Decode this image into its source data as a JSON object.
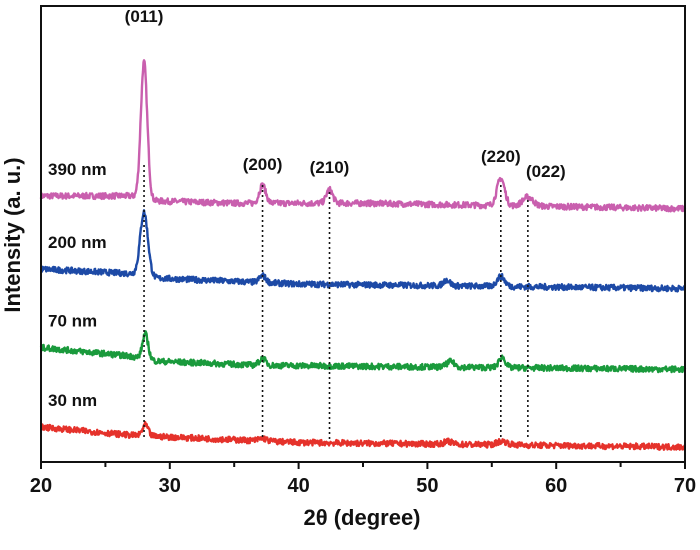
{
  "chart_data": {
    "type": "line",
    "xlabel": "2θ  (degree)",
    "ylabel": "Intensity  (a. u.)",
    "xlim": [
      20,
      70
    ],
    "ylim": [
      0,
      100
    ],
    "xticks": [
      "20",
      "30",
      "40",
      "50",
      "60",
      "70"
    ],
    "minor_xticks": [
      25,
      35,
      45,
      55,
      65
    ],
    "yticks_shown": false,
    "grid": false,
    "legend": "inline labels at left of each trace",
    "reference_lines": [
      {
        "x": 28.0,
        "label": "(011)"
      },
      {
        "x": 37.2,
        "label": "(200)"
      },
      {
        "x": 42.4,
        "label": "(210)"
      },
      {
        "x": 55.7,
        "label": "(220)"
      },
      {
        "x": 57.8,
        "label": "(022)"
      }
    ],
    "series": [
      {
        "name": "390 nm",
        "color": "#c95fae",
        "baseline": [
          [
            20,
            58.6
          ],
          [
            27,
            58.6
          ],
          [
            29,
            57.5
          ],
          [
            35,
            57
          ],
          [
            45,
            57
          ],
          [
            70,
            55.8
          ]
        ],
        "peaks": [
          [
            28.0,
            30,
            0.25
          ],
          [
            37.2,
            4,
            0.25
          ],
          [
            42.4,
            3,
            0.25
          ],
          [
            55.7,
            6,
            0.3
          ],
          [
            57.8,
            2,
            0.4
          ]
        ]
      },
      {
        "name": "200 nm",
        "color": "#1d4aa6",
        "baseline": [
          [
            20,
            42.5
          ],
          [
            27,
            41.5
          ],
          [
            29,
            40.5
          ],
          [
            40,
            39.2
          ],
          [
            70,
            38.2
          ]
        ],
        "peaks": [
          [
            28.0,
            14,
            0.3
          ],
          [
            37.2,
            1.5,
            0.25
          ],
          [
            51.5,
            1.3,
            0.25
          ],
          [
            55.7,
            2.2,
            0.3
          ]
        ]
      },
      {
        "name": "70 nm",
        "color": "#1a9a3c",
        "baseline": [
          [
            20,
            25.2
          ],
          [
            27,
            23.3
          ],
          [
            29,
            22.2
          ],
          [
            37,
            21.3
          ],
          [
            70,
            20.4
          ]
        ],
        "peaks": [
          [
            28.1,
            5.5,
            0.22
          ],
          [
            37.2,
            1.5,
            0.25
          ],
          [
            51.8,
            1.2,
            0.3
          ],
          [
            55.8,
            2.3,
            0.25
          ]
        ]
      },
      {
        "name": "30 nm",
        "color": "#e5322b",
        "baseline": [
          [
            20,
            7.7
          ],
          [
            27,
            5.9
          ],
          [
            30,
            5.5
          ],
          [
            40,
            4.3
          ],
          [
            70,
            3.3
          ]
        ],
        "peaks": [
          [
            28.1,
            2.4,
            0.22
          ],
          [
            37.2,
            0.6,
            0.3
          ],
          [
            51.6,
            0.6,
            0.3
          ],
          [
            55.8,
            0.8,
            0.4
          ]
        ]
      }
    ]
  }
}
